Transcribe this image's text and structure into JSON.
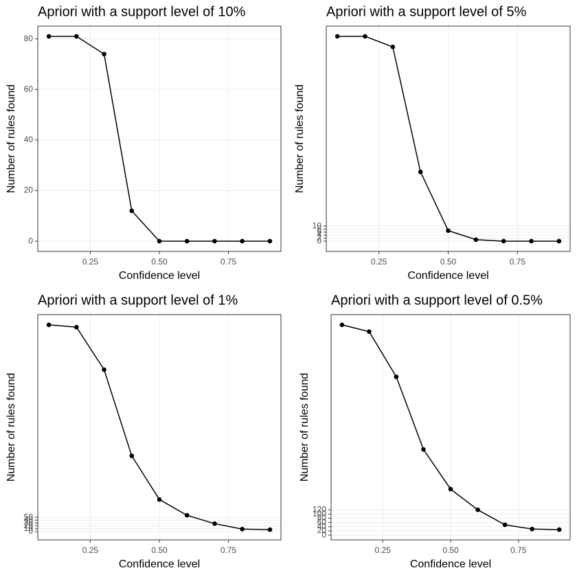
{
  "chart_data": [
    {
      "type": "line",
      "title": "Apriori with a support level of 10%",
      "x_label": "Confidence level",
      "y_label": "Number of rules found",
      "x": [
        0.1,
        0.2,
        0.3,
        0.4,
        0.5,
        0.6,
        0.7,
        0.8,
        0.9
      ],
      "series": [
        {
          "color": "#000000",
          "values": [
            81,
            81,
            74,
            12,
            0,
            0,
            0,
            0,
            0
          ]
        }
      ],
      "xlim": [
        0.06,
        0.94
      ],
      "xticks": [
        0.25,
        {
          "value": 0.5,
          "label": "0.50"
        },
        0.75
      ],
      "ylim": [
        -4.05,
        85.05
      ],
      "yticks": [
        0,
        20,
        40,
        60,
        80
      ],
      "grid": true
    },
    {
      "type": "line",
      "title": "Apriori with a support level of 5%",
      "x_label": "Confidence level",
      "y_label": "Number of rules found",
      "x": [
        0.1,
        0.2,
        0.3,
        0.4,
        0.5,
        0.6,
        0.7,
        0.8,
        0.9
      ],
      "series": [
        {
          "color": "#000000",
          "values": [
            136,
            136,
            129,
            46,
            7,
            1,
            0,
            0,
            0
          ]
        }
      ],
      "xlim": [
        0.06,
        0.94
      ],
      "xticks": [
        0.25,
        {
          "value": 0.5,
          "label": "0.50"
        },
        0.75
      ],
      "ylim": [
        -6.8,
        142.8
      ],
      "yticks": [
        0,
        2,
        4,
        6,
        8,
        10
      ],
      "grid": true
    },
    {
      "type": "line",
      "title": "Apriori with a support level of 1%",
      "x_label": "Confidence level",
      "y_label": "Number of rules found",
      "x": [
        0.1,
        0.2,
        0.3,
        0.4,
        0.5,
        0.6,
        0.7,
        0.8,
        0.9
      ],
      "series": [
        {
          "color": "#000000",
          "values": [
            720,
            712,
            564,
            264,
            112,
            57,
            28,
            9,
            7
          ]
        }
      ],
      "xlim": [
        0.06,
        0.94
      ],
      "xticks": [
        0.25,
        {
          "value": 0.5,
          "label": "0.50"
        },
        0.75
      ],
      "ylim": [
        -28.65,
        755.65
      ],
      "yticks": [
        0,
        10,
        20,
        30,
        40,
        50
      ],
      "grid": true
    },
    {
      "type": "line",
      "title": "Apriori with a support level of 0.5%",
      "x_label": "Confidence level",
      "y_label": "Number of rules found",
      "x": [
        0.1,
        0.2,
        0.3,
        0.4,
        0.5,
        0.6,
        0.7,
        0.8,
        0.9
      ],
      "series": [
        {
          "color": "#000000",
          "values": [
            996,
            964,
            750,
            406,
            218,
            120,
            49,
            29,
            26
          ]
        }
      ],
      "xlim": [
        0.06,
        0.94
      ],
      "xticks": [
        0.25,
        {
          "value": 0.5,
          "label": "0.50"
        },
        0.75
      ],
      "ylim": [
        -22.5,
        1044.5
      ],
      "yticks": [
        0,
        20,
        40,
        60,
        80,
        100,
        120
      ],
      "grid": true
    }
  ]
}
